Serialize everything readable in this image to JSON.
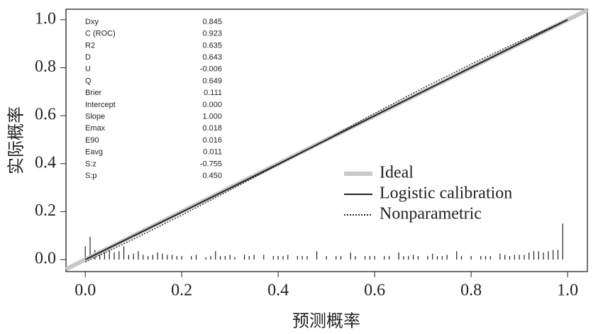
{
  "chart_data": {
    "type": "line",
    "x_label": "预测概率",
    "y_label": "实际概率",
    "xlim": [
      -0.04,
      1.041
    ],
    "ylim": [
      -0.05,
      1.044
    ],
    "xticks": [
      {
        "value": 0,
        "label": "0.0"
      },
      {
        "value": 0.2,
        "label": "0.2"
      },
      {
        "value": 0.4,
        "label": "0.4"
      },
      {
        "value": 0.6,
        "label": "0.6"
      },
      {
        "value": 0.8,
        "label": "0.8"
      },
      {
        "value": 1,
        "label": "1.0"
      }
    ],
    "yticks": [
      {
        "value": 0,
        "label": "0.0"
      },
      {
        "value": 0.2,
        "label": "0.2"
      },
      {
        "value": 0.4,
        "label": "0.4"
      },
      {
        "value": 0.6,
        "label": "0.6"
      },
      {
        "value": 0.8,
        "label": "0.8"
      },
      {
        "value": 1,
        "label": "1.0"
      }
    ],
    "stats": [
      [
        "Dxy",
        "0.845"
      ],
      [
        "C (ROC)",
        "0.923"
      ],
      [
        "R2",
        "0.635"
      ],
      [
        "D",
        "0.643"
      ],
      [
        "U",
        "-0.006"
      ],
      [
        "Q",
        "0.649"
      ],
      [
        "Brier",
        "0.111"
      ],
      [
        "Intercept",
        "0.000"
      ],
      [
        "Slope",
        "1.000"
      ],
      [
        "Emax",
        "0.018"
      ],
      [
        "E90",
        "0.016"
      ],
      [
        "Eavg",
        "0.011"
      ],
      [
        "S:z",
        "-0.755"
      ],
      [
        "S:p",
        "0.450"
      ]
    ],
    "series": [
      {
        "name": "Ideal",
        "color": "#c8c8c8",
        "width": 6,
        "dash": "none",
        "x": [
          -0.04,
          1.041
        ],
        "values": [
          -0.04,
          1.041
        ]
      },
      {
        "name": "Logistic calibration",
        "color": "#222222",
        "width": 2,
        "dash": "none",
        "x": [
          0,
          0.2,
          0.4,
          0.6,
          0.8,
          1
        ],
        "values": [
          0,
          0.198,
          0.398,
          0.6,
          0.801,
          1
        ]
      },
      {
        "name": "Nonparametric",
        "color": "#222222",
        "width": 1.3,
        "dash": "2,2",
        "x": [
          0,
          0.1,
          0.2,
          0.3,
          0.4,
          0.5,
          0.6,
          0.7,
          0.8,
          0.9,
          1
        ],
        "values": [
          -0.01,
          0.085,
          0.185,
          0.29,
          0.395,
          0.5,
          0.61,
          0.715,
          0.815,
          0.91,
          1
        ]
      }
    ],
    "spikes": {
      "color": "#222222",
      "x": [
        0,
        0.01,
        0.02,
        0.03,
        0.04,
        0.05,
        0.06,
        0.07,
        0.08,
        0.09,
        0.1,
        0.11,
        0.12,
        0.13,
        0.14,
        0.15,
        0.16,
        0.17,
        0.18,
        0.19,
        0.2,
        0.22,
        0.23,
        0.25,
        0.26,
        0.27,
        0.28,
        0.29,
        0.3,
        0.31,
        0.33,
        0.34,
        0.35,
        0.37,
        0.39,
        0.4,
        0.41,
        0.42,
        0.44,
        0.45,
        0.46,
        0.48,
        0.5,
        0.52,
        0.53,
        0.55,
        0.56,
        0.58,
        0.59,
        0.6,
        0.62,
        0.63,
        0.65,
        0.66,
        0.67,
        0.68,
        0.69,
        0.71,
        0.72,
        0.73,
        0.74,
        0.75,
        0.77,
        0.78,
        0.8,
        0.82,
        0.83,
        0.84,
        0.86,
        0.87,
        0.88,
        0.89,
        0.9,
        0.91,
        0.92,
        0.93,
        0.94,
        0.95,
        0.96,
        0.97,
        0.98,
        0.99
      ],
      "values": [
        0.055,
        0.095,
        0.04,
        0.03,
        0.035,
        0.04,
        0.03,
        0.035,
        0.055,
        0.02,
        0.025,
        0.035,
        0.02,
        0.015,
        0.02,
        0.03,
        0.025,
        0.02,
        0.02,
        0.015,
        0.015,
        0.015,
        0.02,
        0.01,
        0.015,
        0.035,
        0.015,
        0.015,
        0.02,
        0.01,
        0.02,
        0.015,
        0.02,
        0.02,
        0.015,
        0.015,
        0.015,
        0.02,
        0.015,
        0.015,
        0.015,
        0.035,
        0.015,
        0.015,
        0.015,
        0.03,
        0.015,
        0.015,
        0.015,
        0.015,
        0.015,
        0.015,
        0.03,
        0.015,
        0.015,
        0.02,
        0.015,
        0.015,
        0.025,
        0.015,
        0.015,
        0.02,
        0.035,
        0.015,
        0.015,
        0.015,
        0.015,
        0.015,
        0.025,
        0.02,
        0.015,
        0.02,
        0.02,
        0.02,
        0.03,
        0.035,
        0.035,
        0.03,
        0.035,
        0.04,
        0.04,
        0.15
      ]
    }
  }
}
